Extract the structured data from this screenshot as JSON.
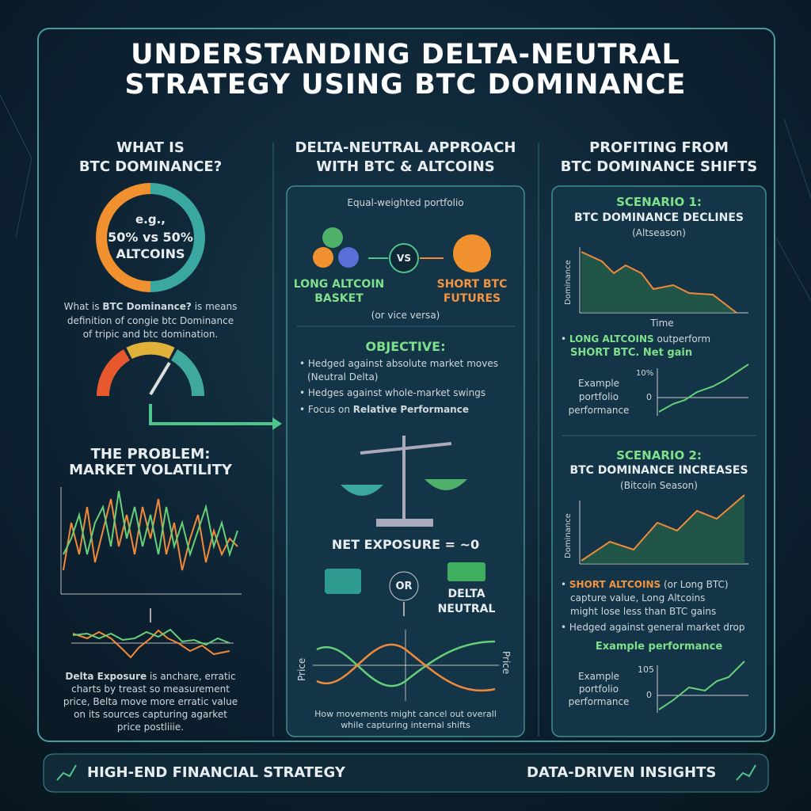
{
  "header": {
    "title": [
      "UNDERSTANDING DELTA-NEUTRAL",
      "STRATEGY USING BTC DOMINANCE"
    ]
  },
  "left": {
    "heading": [
      "WHAT IS",
      "BTC DOMINANCE?"
    ],
    "donut": [
      "e.g.,",
      "50% vs 50%",
      "ALTCOINS"
    ],
    "description": [
      [
        "What is ",
        "BTC Dominance?",
        " is means"
      ],
      "definition of congie btc Dominance",
      "of tripic and btc domination."
    ],
    "problem_heading": [
      "THE PROBLEM:",
      "MARKET VOLATILITY"
    ],
    "footnote": [
      [
        "Delta Exposure",
        " is anchare, erratic"
      ],
      "charts by treast so measurement",
      "price, Belta move more erratic value",
      "on its sources capturing agarket",
      "price postliiie."
    ]
  },
  "middle": {
    "heading": [
      "DELTA-NEUTRAL APPROACH",
      "WITH BTC & ALTCOINS"
    ],
    "portfolio": "Equal-weighted portfolio",
    "long": [
      "LONG ALTCOIN",
      "BASKET"
    ],
    "vs": "VS",
    "short": [
      "SHORT BTC",
      "FUTURES"
    ],
    "vice_versa": "(or vice versa)",
    "objective": "OBJECTIVE:",
    "bullets": [
      [
        "Hedged against absolute market moves",
        "(Neutral Delta)"
      ],
      [
        "Hedges against whole-market swings"
      ],
      [
        [
          "Focus on ",
          "Relative Performance"
        ]
      ]
    ],
    "net_exposure": "NET EXPOSURE = ~0",
    "or": "OR",
    "delta_neutral": [
      "DELTA",
      "NEUTRAL"
    ],
    "axis_left": "Price",
    "axis_right": "Price",
    "caption": [
      "How movements might cancel out overall",
      "while capturing internal shifts"
    ]
  },
  "right": {
    "heading": [
      "PROFITING FROM",
      "BTC DOMINANCE SHIFTS"
    ],
    "scenario1": {
      "title": [
        "SCENARIO 1:",
        "BTC DOMINANCE DECLINES"
      ],
      "subtitle": "(Altseason)",
      "y_axis": "Dominance",
      "x_axis": "Time",
      "bullet": [
        [
          "LONG ALTCOINS",
          " outperform"
        ],
        "SHORT BTC. Net gain"
      ],
      "perf_label": [
        "Example",
        "portfolio",
        "performance"
      ],
      "ticks": [
        "10%",
        "0"
      ]
    },
    "scenario2": {
      "title": [
        "SCENARIO 2:",
        "BTC DOMINANCE INCREASES"
      ],
      "subtitle": "(Bitcoin Season)",
      "y_axis": "Dominance",
      "bullets": [
        [
          [
            "SHORT ALTCOINS",
            " (or Long BTC)"
          ],
          "capture value, Long Altcoins",
          "might lose less than BTC gains"
        ],
        [
          "Hedged against general market drop"
        ]
      ],
      "example": "Example performance",
      "perf_label": [
        "Example",
        "portfolio",
        "performance"
      ],
      "ticks": [
        "105",
        "0"
      ]
    }
  },
  "footer": {
    "left": "HIGH-END FINANCIAL STRATEGY",
    "right": "DATA-DRIVEN INSIGHTS"
  }
}
